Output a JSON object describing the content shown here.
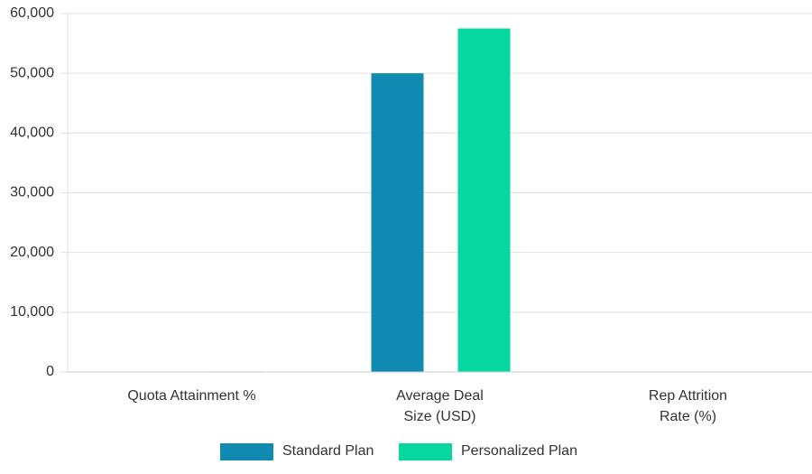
{
  "chart_data": {
    "type": "bar",
    "categories": [
      [
        "Quota Attainment %"
      ],
      [
        "Average Deal",
        "Size (USD)"
      ],
      [
        "Rep Attrition",
        "Rate (%)"
      ]
    ],
    "series": [
      {
        "name": "Standard Plan",
        "color": "#118ab2",
        "values": [
          68,
          50000,
          22
        ]
      },
      {
        "name": "Personalized Plan",
        "color": "#06d6a0",
        "values": [
          87,
          57500,
          14
        ]
      }
    ],
    "ylim": [
      0,
      60000
    ],
    "yticks": [
      0,
      {
        "value": 10000,
        "label": "10,000"
      },
      {
        "value": 20000,
        "label": "20,000"
      },
      {
        "value": 30000,
        "label": "30,000"
      },
      {
        "value": 40000,
        "label": "40,000"
      },
      {
        "value": 50000,
        "label": "50,000"
      },
      {
        "value": 60000,
        "label": "60,000"
      }
    ],
    "grid": true,
    "legend": "bottom"
  }
}
